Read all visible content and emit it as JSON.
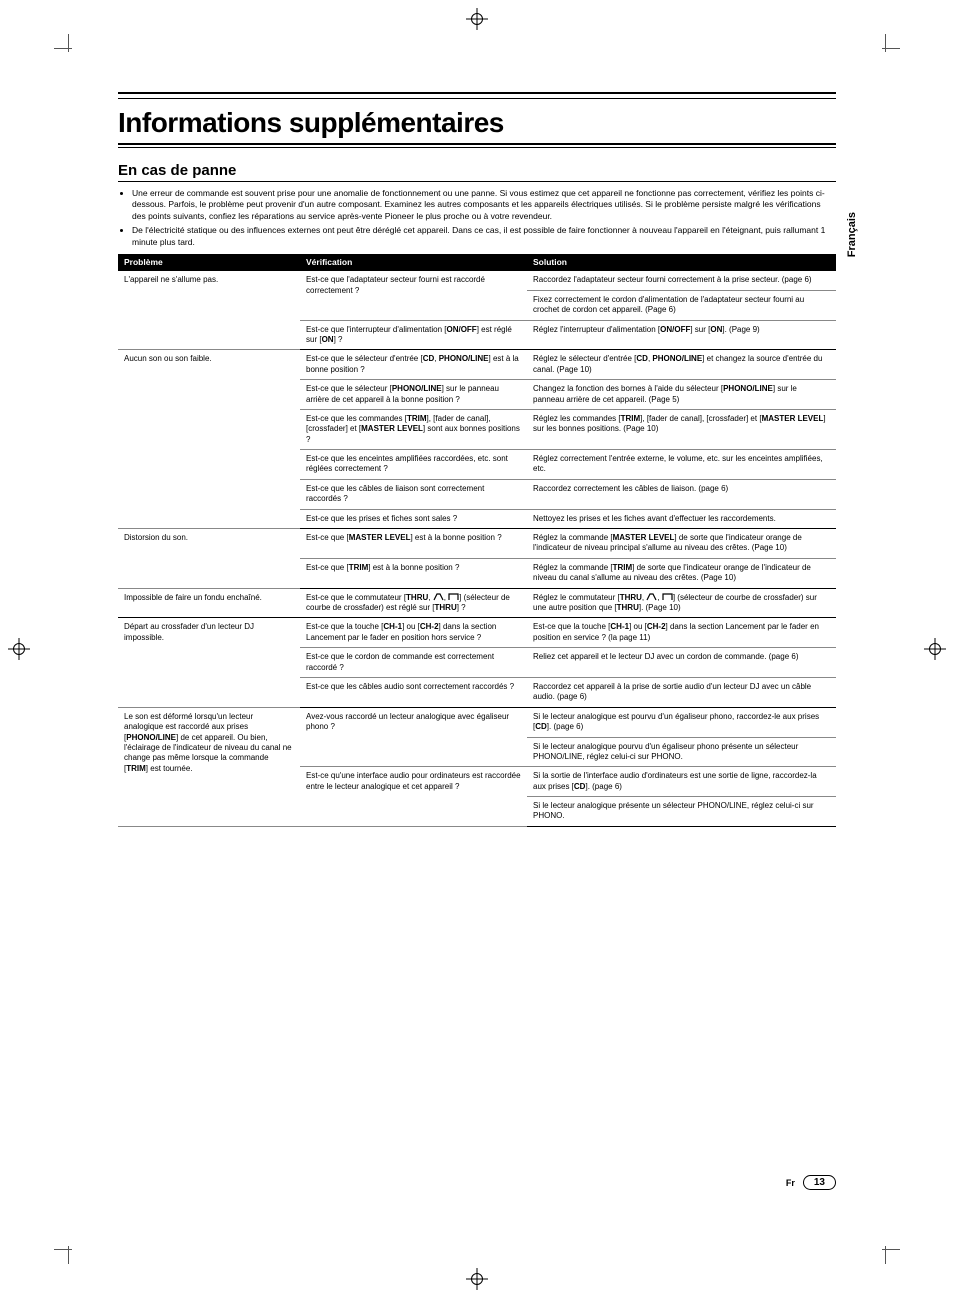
{
  "side_label": "Français",
  "title": "Informations supplémentaires",
  "section": "En cas de panne",
  "bullets": [
    "Une erreur de commande est souvent prise pour une anomalie de fonctionnement ou une panne. Si vous estimez que cet appareil ne fonctionne pas correctement, vérifiez les points ci-dessous. Parfois, le problème peut provenir d'un autre composant. Examinez les autres composants et les appareils électriques utilisés. Si le problème persiste malgré les vérifications des points suivants, confiez les réparations au service après-vente Pioneer le plus proche ou à votre revendeur.",
    "De l'électricité statique ou des influences externes ont peut être déréglé cet appareil. Dans ce cas, il est possible de faire fonctionner à nouveau l'appareil en l'éteignant, puis rallumant 1 minute plus tard."
  ],
  "headers": {
    "problem": "Problème",
    "verif": "Vérification",
    "solution": "Solution"
  },
  "rows": [
    {
      "problem": "L'appareil ne s'allume pas.",
      "verif": "Est-ce que l'adaptateur secteur fourni est raccordé correctement ?",
      "solutions": [
        "Raccordez l'adaptateur secteur fourni correctement à la prise secteur. (page 6)",
        "Fixez correctement le cordon d'alimentation de l'adaptateur secteur fourni au crochet de cordon cet appareil. (Page 6)"
      ]
    },
    {
      "problem": "",
      "verif_html": "Est-ce que l'interrupteur d'alimentation [<strong>ON/OFF</strong>] est réglé sur [<strong>ON</strong>] ?",
      "solutions_html": [
        "Réglez l'interrupteur d'alimentation [<strong>ON/OFF</strong>] sur [<strong>ON</strong>]. (Page 9)"
      ]
    },
    {
      "problem": "Aucun son ou son faible.",
      "verif_html": "Est-ce que le sélecteur d'entrée [<strong>CD</strong>, <strong>PHONO/LINE</strong>] est à la bonne position ?",
      "solutions_html": [
        "Réglez le sélecteur d'entrée [<strong>CD</strong>, <strong>PHONO/LINE</strong>] et changez la source d'entrée du canal. (Page 10)"
      ]
    },
    {
      "problem": "",
      "verif_html": "Est-ce que le sélecteur [<strong>PHONO/LINE</strong>] sur le panneau arrière de cet appareil à la bonne position ?",
      "solutions_html": [
        "Changez la fonction des bornes à l'aide du sélecteur [<strong>PHONO/LINE</strong>] sur le panneau arrière de cet appareil. (Page 5)"
      ]
    },
    {
      "problem": "",
      "verif_html": "Est-ce que les commandes [<strong>TRIM</strong>], [fader de canal], [crossfader] et [<strong>MASTER LEVEL</strong>] sont aux bonnes positions ?",
      "solutions_html": [
        "Réglez les commandes [<strong>TRIM</strong>], [fader de canal], [crossfader] et [<strong>MASTER LEVEL</strong>] sur les bonnes positions. (Page 10)"
      ]
    },
    {
      "problem": "",
      "verif": "Est-ce que les enceintes amplifiées raccordées, etc. sont réglées correctement ?",
      "solutions": [
        "Réglez correctement l'entrée externe, le volume, etc. sur les enceintes amplifiées, etc."
      ]
    },
    {
      "problem": "",
      "verif": "Est-ce que les câbles de liaison sont correctement raccordés ?",
      "solutions": [
        "Raccordez correctement les câbles de liaison. (page 6)"
      ]
    },
    {
      "problem": "",
      "verif": "Est-ce que les prises et fiches sont sales ?",
      "solutions": [
        "Nettoyez les prises et les fiches avant d'effectuer les raccordements."
      ]
    },
    {
      "problem": "Distorsion du son.",
      "verif_html": "Est-ce que [<strong>MASTER LEVEL</strong>] est à la bonne position ?",
      "solutions_html": [
        "Réglez la commande [<strong>MASTER LEVEL</strong>] de sorte que l'indicateur orange de l'indicateur de niveau principal s'allume au niveau des crêtes. (Page 10)"
      ]
    },
    {
      "problem": "",
      "verif_html": "Est-ce que [<strong>TRIM</strong>] est à la bonne position ?",
      "solutions_html": [
        "Réglez la commande [<strong>TRIM</strong>] de sorte que l'indicateur orange de l'indicateur de niveau du canal s'allume au niveau des crêtes. (Page 10)"
      ]
    },
    {
      "problem": "Impossible de faire un fondu enchaîné.",
      "verif_html": "Est-ce que le commutateur [<strong>THRU</strong>, ICONS] (sélecteur de courbe de crossfader) est réglé sur [<strong>THRU</strong>] ?",
      "solutions_html": [
        "Réglez le commutateur [<strong>THRU</strong>, ICONS] (sélecteur de courbe de crossfader) sur une autre position que [<strong>THRU</strong>]. (Page 10)"
      ]
    },
    {
      "problem": "Départ au crossfader d'un lecteur DJ impossible.",
      "verif_html": "Est-ce que la touche [<strong>CH-1</strong>] ou [<strong>CH-2</strong>] dans la section Lancement par le fader en position hors service ?",
      "solutions_html": [
        "Est-ce que la touche [<strong>CH-1</strong>] ou [<strong>CH-2</strong>] dans la section Lancement par le fader en position en service ? (la page 11)"
      ]
    },
    {
      "problem": "",
      "verif": "Est-ce que le cordon de commande est correctement raccordé ?",
      "solutions": [
        "Reliez cet appareil et le lecteur DJ avec un cordon de commande. (page 6)"
      ]
    },
    {
      "problem": "",
      "verif": "Est-ce que les câbles audio sont correctement raccordés ?",
      "solutions": [
        "Raccordez cet appareil à la prise de sortie audio d'un lecteur DJ avec un câble audio. (page 6)"
      ]
    },
    {
      "problem_html": "Le son est déformé lorsqu'un lecteur analogique est raccordé aux prises [<strong>PHONO/LINE</strong>] de cet appareil. Ou bien, l'éclairage de l'indicateur de niveau du canal ne change pas même lorsque la commande [<strong>TRIM</strong>] est tournée.",
      "verif": "Avez-vous raccordé un lecteur analogique avec égaliseur phono ?",
      "solutions_html": [
        "Si le lecteur analogique est pourvu d'un égaliseur phono, raccordez-le aux prises [<strong>CD</strong>]. (page 6)",
        "Si le lecteur analogique pourvu d'un égaliseur phono présente un sélecteur PHONO/LINE, réglez celui-ci sur PHONO."
      ]
    },
    {
      "problem": "",
      "verif": "Est-ce qu'une interface audio pour ordinateurs est raccordée entre le lecteur analogique et cet appareil ?",
      "solutions_html": [
        "Si la sortie de l'interface audio d'ordinateurs est une sortie de ligne, raccordez-la aux prises [<strong>CD</strong>]. (page 6)",
        "Si le lecteur analogique présente un sélecteur PHONO/LINE, réglez celui-ci sur PHONO."
      ]
    }
  ],
  "footer": {
    "lang": "Fr",
    "page": "13"
  },
  "colors": {
    "header_bg": "#000000",
    "header_fg": "#ffffff",
    "rule": "#000000",
    "cell_border": "#888888"
  }
}
